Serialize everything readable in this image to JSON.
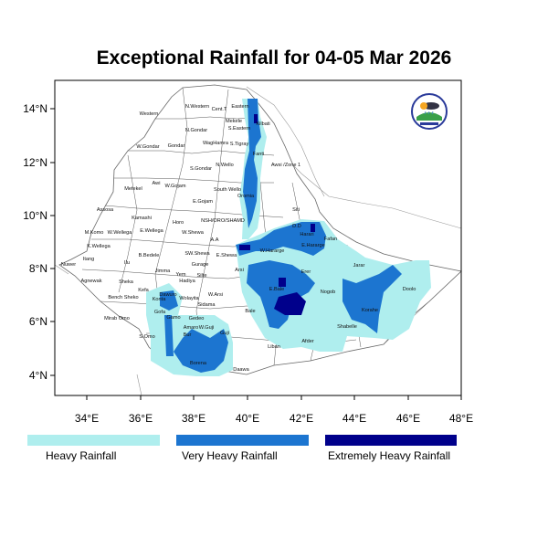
{
  "title": "Exceptional Rainfall for 04-05 Mar 2026",
  "colors": {
    "heavy": "#afeeee",
    "very_heavy": "#1c75d0",
    "extremely_heavy": "#00008b"
  },
  "axes": {
    "y_ticks": [
      "14°N",
      "12°N",
      "10°N",
      "8°N",
      "6°N",
      "4°N"
    ],
    "x_ticks": [
      "34°E",
      "36°E",
      "38°E",
      "40°E",
      "42°E",
      "44°E",
      "46°E",
      "48°E"
    ]
  },
  "legend": [
    {
      "label": "Heavy Rainfall"
    },
    {
      "label": "Very Heavy Rainfall"
    },
    {
      "label": "Extremely Heavy Rainfall"
    }
  ],
  "regions": [
    "Western",
    "N.Western",
    "Cent.T",
    "Eastern",
    "Mekele",
    "S.Eastern",
    "Kilbati",
    "N.Gondar",
    "W.Gondar",
    "Gondar",
    "WagHamra",
    "S.Tigray",
    "Fanti",
    "S.Gondar",
    "N.Wello",
    "Awsi /Zone 1",
    "Metekel",
    "Awi",
    "W.Gojam",
    "South Wello",
    "E.Gojam",
    "Oromia",
    "Assosa",
    "Kamashi",
    "Horo",
    "NSH/ORO/SHAMD",
    "M.Komo",
    "W.Wellega",
    "E.Wellega",
    "W.Shewa",
    "A.A",
    "K.Wellega",
    "B.Bedele",
    "SW.Shewa",
    "E.Shewa",
    "W.Hararge",
    "Itang",
    "Ilu",
    "Jimma",
    "Gurage",
    "Nuwer",
    "Yem",
    "Silte",
    "Arsi",
    "Agnewak",
    "Sheka",
    "Hadiya",
    "Kefa",
    "Bench Sheko",
    "Konta",
    "Dawuro",
    "Wolayita",
    "W.Arsi",
    "Sidama",
    "Gofa",
    "Mirab Omo",
    "Gamo",
    "Gedeo",
    "Amaro",
    "W.Guji",
    "S.Omo",
    "Bur",
    "Guji",
    "Borena",
    "Daawa",
    "Bale",
    "Siti",
    "D.D",
    "Harari",
    "Fafan",
    "E.Hararge",
    "Jarar",
    "Erer",
    "Nogob",
    "E.Bale",
    "Doolo",
    "Korahe",
    "Shabelle",
    "Afder",
    "Liban"
  ]
}
